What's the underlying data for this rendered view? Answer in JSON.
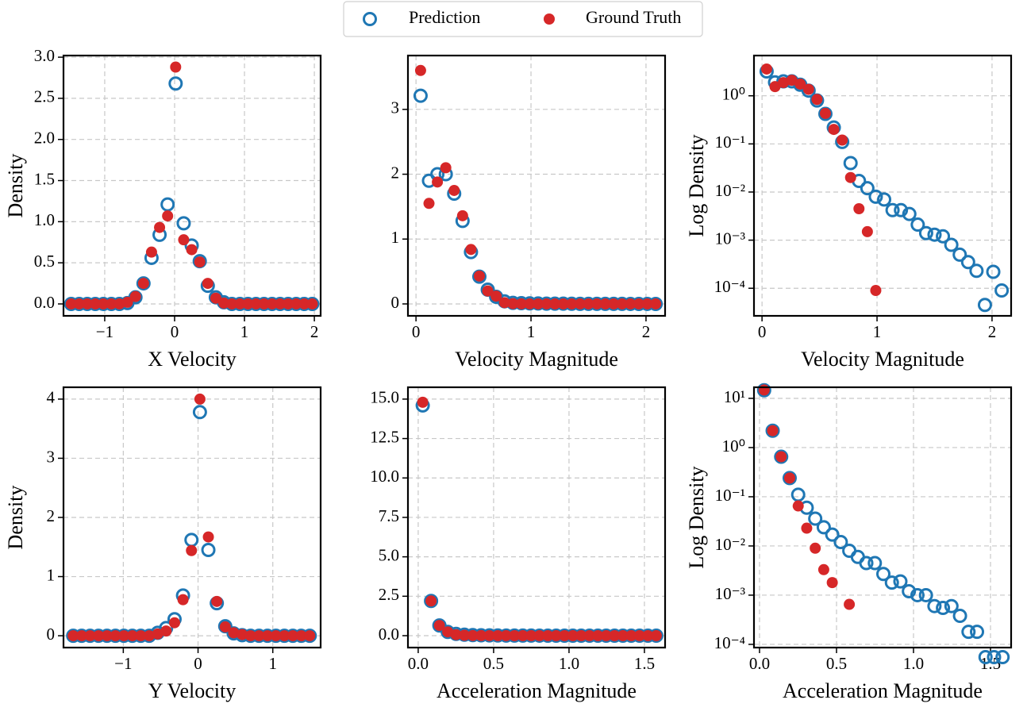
{
  "chart_data": [
    {
      "type": "scatter",
      "x_label": "X Velocity",
      "y_label": "Density",
      "legend": "upper center",
      "grid": true,
      "x": [
        -1.48,
        -1.365,
        -1.25,
        -1.135,
        -1.02,
        -0.905,
        -0.79,
        -0.675,
        -0.56,
        -0.445,
        -0.33,
        -0.215,
        -0.1,
        0.015,
        0.13,
        0.245,
        0.36,
        0.475,
        0.59,
        0.705,
        0.82,
        0.935,
        1.05,
        1.165,
        1.28,
        1.395,
        1.51,
        1.625,
        1.74,
        1.855,
        1.97
      ],
      "series": [
        {
          "name": "Prediction",
          "color": "#1f77b4",
          "hollow": true,
          "values": [
            0,
            0,
            0,
            0,
            0,
            0,
            0,
            0.01,
            0.08,
            0.25,
            0.56,
            0.84,
            1.21,
            2.68,
            0.98,
            0.71,
            0.52,
            0.22,
            0.08,
            0.02,
            0,
            0,
            0,
            0,
            0,
            0,
            0,
            0,
            0,
            0,
            0
          ]
        },
        {
          "name": "Ground Truth",
          "color": "#d62728",
          "hollow": false,
          "values": [
            0,
            0,
            0,
            0,
            0,
            0,
            0,
            0.02,
            0.09,
            0.25,
            0.63,
            0.93,
            1.07,
            2.88,
            0.78,
            0.66,
            0.51,
            0.25,
            0.07,
            0.01,
            0,
            0,
            0,
            0,
            0,
            0,
            0,
            0,
            0,
            0,
            0
          ]
        }
      ],
      "xlim": [
        -1.59,
        2.09
      ],
      "xticks": [
        {
          "value": -1,
          "label": "−1"
        },
        0,
        1,
        2
      ],
      "ylim": [
        -0.145,
        3.02
      ],
      "yticks": [
        {
          "value": 0,
          "label": "0.0"
        },
        0.5,
        {
          "value": 1,
          "label": "1.0"
        },
        1.5,
        {
          "value": 2,
          "label": "2.0"
        },
        2.5,
        {
          "value": 3,
          "label": "3.0"
        }
      ]
    },
    {
      "type": "scatter",
      "x_label": "Velocity Magnitude",
      "grid": true,
      "x": [
        0.04,
        0.113,
        0.186,
        0.259,
        0.332,
        0.405,
        0.478,
        0.551,
        0.624,
        0.697,
        0.77,
        0.843,
        0.916,
        0.989,
        1.062,
        1.135,
        1.208,
        1.281,
        1.354,
        1.427,
        1.5,
        1.573,
        1.646,
        1.719,
        1.792,
        1.865,
        1.938,
        2.011,
        2.084
      ],
      "series": [
        {
          "name": "Prediction",
          "color": "#1f77b4",
          "hollow": true,
          "values": [
            3.21,
            1.9,
            2.0,
            2.0,
            1.7,
            1.28,
            0.8,
            0.42,
            0.22,
            0.11,
            0.04,
            0.017,
            0.012,
            0.008,
            0.007,
            0.0042,
            0.0042,
            0.0035,
            0.0021,
            0.0014,
            0.0013,
            0.0012,
            0.0008,
            0.0005,
            0.00035,
            0.00023,
            4.5e-05,
            0.00022,
            9e-05
          ]
        },
        {
          "name": "Ground Truth",
          "color": "#d62728",
          "hollow": false,
          "values": [
            3.6,
            1.55,
            1.88,
            2.1,
            1.75,
            1.36,
            0.84,
            0.43,
            0.2,
            0.12,
            0.02,
            0.0045,
            0.0015,
            9e-05,
            0,
            0,
            0,
            0,
            0,
            0,
            0,
            0,
            0,
            0,
            0,
            0,
            0,
            0,
            0
          ]
        }
      ],
      "xlim": [
        -0.07,
        2.166
      ],
      "xticks": [
        0,
        1,
        2
      ],
      "ylim": [
        -0.184,
        3.83
      ],
      "yticks": [
        0,
        1,
        2,
        3
      ]
    },
    {
      "type": "scatter",
      "x_label": "Velocity Magnitude",
      "y_label": "Log Density",
      "yscale": "log",
      "grid": true,
      "x": [
        0.04,
        0.113,
        0.186,
        0.259,
        0.332,
        0.405,
        0.478,
        0.551,
        0.624,
        0.697,
        0.77,
        0.843,
        0.916,
        0.989,
        1.062,
        1.135,
        1.208,
        1.281,
        1.354,
        1.427,
        1.5,
        1.573,
        1.646,
        1.719,
        1.792,
        1.865,
        1.938,
        2.011,
        2.084
      ],
      "series": [
        {
          "name": "Prediction",
          "color": "#1f77b4",
          "hollow": true,
          "values": [
            3.21,
            1.9,
            2.0,
            2.0,
            1.7,
            1.28,
            0.8,
            0.42,
            0.22,
            0.11,
            0.04,
            0.017,
            0.012,
            0.008,
            0.007,
            0.0042,
            0.0042,
            0.0035,
            0.0021,
            0.0014,
            0.0013,
            0.0012,
            0.0008,
            0.0005,
            0.00035,
            0.00023,
            4.5e-05,
            0.00022,
            9e-05
          ]
        },
        {
          "name": "Ground Truth",
          "color": "#d62728",
          "hollow": false,
          "values": [
            3.6,
            1.55,
            1.88,
            2.1,
            1.75,
            1.36,
            0.84,
            0.43,
            0.2,
            0.12,
            0.02,
            0.0045,
            0.0015,
            9e-05,
            null,
            null,
            null,
            null,
            null,
            null,
            null,
            null,
            null,
            null,
            null,
            null,
            null,
            null,
            null
          ]
        }
      ],
      "xlim": [
        -0.07,
        2.166
      ],
      "xticks": [
        0,
        1,
        2
      ],
      "ylim": [
        2.67e-05,
        6.86
      ],
      "yticks": [
        {
          "value": 0.0001,
          "label": "10⁻⁴"
        },
        {
          "value": 0.001,
          "label": "10⁻³"
        },
        {
          "value": 0.01,
          "label": "10⁻²"
        },
        {
          "value": 0.1,
          "label": "10⁻¹"
        },
        {
          "value": 1,
          "label": "10⁰"
        }
      ]
    },
    {
      "type": "scatter",
      "x_label": "Y Velocity",
      "y_label": "Density",
      "grid": true,
      "x": [
        -1.67,
        -1.557,
        -1.444,
        -1.331,
        -1.218,
        -1.105,
        -0.992,
        -0.879,
        -0.766,
        -0.653,
        -0.54,
        -0.427,
        -0.314,
        -0.201,
        -0.088,
        0.025,
        0.138,
        0.251,
        0.364,
        0.477,
        0.59,
        0.703,
        0.816,
        0.929,
        1.042,
        1.155,
        1.268,
        1.381,
        1.494
      ],
      "series": [
        {
          "name": "Prediction",
          "color": "#1f77b4",
          "hollow": true,
          "values": [
            0,
            0,
            0,
            0,
            0,
            0,
            0,
            0,
            0,
            0,
            0.05,
            0.13,
            0.28,
            0.68,
            1.62,
            3.78,
            1.45,
            0.55,
            0.16,
            0.04,
            0.01,
            0,
            0,
            0,
            0,
            0,
            0,
            0,
            0
          ]
        },
        {
          "name": "Ground Truth",
          "color": "#d62728",
          "hollow": false,
          "values": [
            0,
            0,
            0,
            0,
            0,
            0,
            0,
            0,
            0,
            0,
            0.03,
            0.08,
            0.22,
            0.61,
            1.44,
            4.0,
            1.67,
            0.58,
            0.15,
            0.05,
            0.02,
            0,
            0,
            0,
            0,
            0,
            0,
            0,
            0
          ]
        }
      ],
      "xlim": [
        -1.8,
        1.64
      ],
      "xticks": [
        {
          "value": -1,
          "label": "−1"
        },
        0,
        1
      ],
      "ylim": [
        -0.2,
        4.2
      ],
      "yticks": [
        0,
        1,
        2,
        3,
        4
      ]
    },
    {
      "type": "scatter",
      "x_label": "Acceleration Magnitude",
      "grid": true,
      "x": [
        0.03,
        0.0853,
        0.1406,
        0.1959,
        0.2512,
        0.3065,
        0.3618,
        0.4171,
        0.4724,
        0.5277,
        0.583,
        0.6383,
        0.6936,
        0.7489,
        0.8042,
        0.8595,
        0.9148,
        0.9701,
        1.0254,
        1.0807,
        1.136,
        1.1913,
        1.2466,
        1.3019,
        1.3572,
        1.4125,
        1.4678,
        1.5231,
        1.5784
      ],
      "series": [
        {
          "name": "Prediction",
          "color": "#1f77b4",
          "hollow": true,
          "values": [
            14.6,
            2.2,
            0.65,
            0.24,
            0.11,
            0.06,
            0.036,
            0.024,
            0.017,
            0.012,
            0.008,
            0.006,
            0.0045,
            0.0045,
            0.0027,
            0.0018,
            0.0019,
            0.0012,
            0.001,
            0.001,
            0.0006,
            0.00055,
            0.0006,
            0.00038,
            0.00018,
            0.00018,
            5.5e-05,
            5.5e-05,
            5.5e-05
          ]
        },
        {
          "name": "Ground Truth",
          "color": "#d62728",
          "hollow": false,
          "values": [
            14.8,
            2.2,
            0.65,
            0.24,
            0.065,
            0.023,
            0.009,
            0.0033,
            0.0018,
            0,
            0.00065,
            0,
            0,
            0,
            0,
            0,
            0,
            0,
            0,
            0,
            0,
            0,
            0,
            0,
            0,
            0,
            0,
            0,
            0
          ]
        }
      ],
      "xlim": [
        -0.068,
        1.637
      ],
      "xticks": [
        {
          "value": 0,
          "label": "0.0"
        },
        0.5,
        {
          "value": 1,
          "label": "1.0"
        },
        1.5
      ],
      "ylim": [
        -0.755,
        15.75
      ],
      "yticks": [
        {
          "value": 0,
          "label": "0.0"
        },
        2.5,
        {
          "value": 5,
          "label": "5.0"
        },
        7.5,
        {
          "value": 10,
          "label": "10.0"
        },
        12.5,
        {
          "value": 15,
          "label": "15.0"
        }
      ]
    },
    {
      "type": "scatter",
      "x_label": "Acceleration Magnitude",
      "y_label": "Log Density",
      "yscale": "log",
      "grid": true,
      "x": [
        0.03,
        0.0853,
        0.1406,
        0.1959,
        0.2512,
        0.3065,
        0.3618,
        0.4171,
        0.4724,
        0.5277,
        0.583,
        0.6383,
        0.6936,
        0.7489,
        0.8042,
        0.8595,
        0.9148,
        0.9701,
        1.0254,
        1.0807,
        1.136,
        1.1913,
        1.2466,
        1.3019,
        1.3572,
        1.4125,
        1.4678,
        1.5231,
        1.5784
      ],
      "series": [
        {
          "name": "Prediction",
          "color": "#1f77b4",
          "hollow": true,
          "values": [
            14.6,
            2.2,
            0.65,
            0.24,
            0.11,
            0.06,
            0.036,
            0.024,
            0.017,
            0.012,
            0.008,
            0.006,
            0.0045,
            0.0045,
            0.0027,
            0.0018,
            0.0019,
            0.0012,
            0.001,
            0.001,
            0.0006,
            0.00055,
            0.0006,
            0.00038,
            0.00018,
            0.00018,
            5.5e-05,
            5.5e-05,
            5.5e-05
          ]
        },
        {
          "name": "Ground Truth",
          "color": "#d62728",
          "hollow": false,
          "values": [
            14.8,
            2.2,
            0.65,
            0.24,
            0.065,
            0.023,
            0.009,
            0.0033,
            0.0018,
            null,
            0.00065,
            null,
            null,
            null,
            null,
            null,
            null,
            null,
            null,
            null,
            null,
            null,
            null,
            null,
            null,
            null,
            null,
            null,
            null
          ]
        }
      ],
      "xlim": [
        -0.036,
        1.634
      ],
      "xticks": [
        {
          "value": 0,
          "label": "0.0"
        },
        0.5,
        {
          "value": 1,
          "label": "1.0"
        },
        1.5
      ],
      "ylim": [
        8.6e-05,
        16.8
      ],
      "yticks": [
        {
          "value": 0.0001,
          "label": "10⁻⁴"
        },
        {
          "value": 0.001,
          "label": "10⁻³"
        },
        {
          "value": 0.01,
          "label": "10⁻²"
        },
        {
          "value": 0.1,
          "label": "10⁻¹"
        },
        {
          "value": 1,
          "label": "10⁰"
        },
        {
          "value": 10,
          "label": "10¹"
        }
      ]
    }
  ]
}
